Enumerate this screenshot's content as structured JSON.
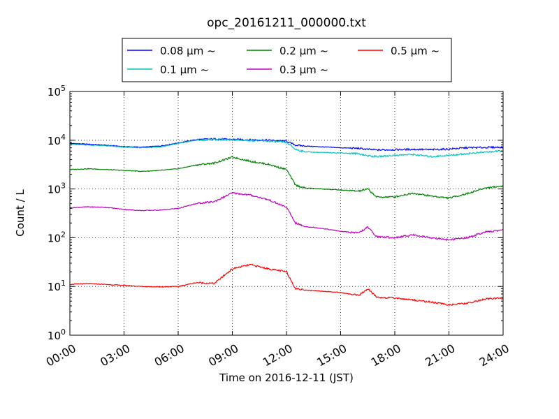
{
  "chart_data": {
    "type": "line",
    "title": "opc_20161211_000000.txt",
    "xlabel": "Time on 2016-12-11 (JST)",
    "ylabel": "Count / L",
    "yscale": "log",
    "ylim": [
      1,
      100000
    ],
    "xlim": [
      "00:00",
      "24:00"
    ],
    "grid": true,
    "legend_position": "top-center, outside plot",
    "x_ticks": [
      "00:00",
      "03:00",
      "06:00",
      "09:00",
      "12:00",
      "15:00",
      "18:00",
      "21:00",
      "24:00"
    ],
    "y_ticks": [
      {
        "base": "10",
        "exp": "0"
      },
      {
        "base": "10",
        "exp": "1"
      },
      {
        "base": "10",
        "exp": "2"
      },
      {
        "base": "10",
        "exp": "3"
      },
      {
        "base": "10",
        "exp": "4"
      },
      {
        "base": "10",
        "exp": "5"
      }
    ],
    "x_hours": [
      0,
      1,
      2,
      3,
      4,
      5,
      6,
      7,
      8,
      9,
      10,
      11,
      12,
      12.5,
      13,
      14,
      15,
      16,
      16.5,
      17,
      18,
      19,
      20,
      21,
      22,
      23,
      24
    ],
    "series": [
      {
        "name": "0.08 µm ~",
        "legend_label": "0.08 μm ~",
        "color": "#0000ff",
        "values": [
          8600,
          8300,
          7900,
          7400,
          7200,
          7600,
          8800,
          10300,
          10600,
          10400,
          10200,
          10000,
          9600,
          7900,
          7600,
          7300,
          7000,
          6800,
          6500,
          6300,
          6400,
          6500,
          6400,
          6600,
          7000,
          7100,
          7200
        ]
      },
      {
        "name": "0.1 µm ~",
        "legend_label": "0.1 μm ~",
        "color": "#00bfbf",
        "values": [
          8200,
          8000,
          7700,
          7200,
          7000,
          7300,
          8600,
          10000,
          10400,
          10100,
          9900,
          9600,
          9000,
          6500,
          5800,
          5600,
          5500,
          5300,
          4800,
          4600,
          4900,
          5100,
          4600,
          4900,
          5300,
          5700,
          6000
        ]
      },
      {
        "name": "0.2 µm ~",
        "legend_label": "0.2 μm ~",
        "color": "#008000",
        "values": [
          2500,
          2600,
          2500,
          2400,
          2300,
          2400,
          2600,
          3100,
          3400,
          4500,
          3700,
          3200,
          2500,
          1200,
          1050,
          1000,
          950,
          900,
          1000,
          680,
          690,
          820,
          720,
          650,
          800,
          1050,
          1150
        ]
      },
      {
        "name": "0.3 µm ~",
        "legend_label": "0.3 μm ~",
        "color": "#bf00bf",
        "values": [
          410,
          430,
          420,
          380,
          360,
          370,
          400,
          500,
          550,
          830,
          750,
          600,
          420,
          200,
          170,
          155,
          135,
          125,
          165,
          105,
          100,
          115,
          100,
          90,
          100,
          130,
          145
        ]
      },
      {
        "name": "0.5 µm ~",
        "legend_label": "0.5 μm ~",
        "color": "#ff0000",
        "values": [
          11,
          11.5,
          11,
          10.5,
          10,
          9.8,
          10,
          12,
          11.5,
          23,
          28,
          23,
          20,
          9,
          8.5,
          8,
          7.5,
          6.5,
          9,
          6,
          5.8,
          5.3,
          4.8,
          4.2,
          4.5,
          5.5,
          5.8
        ]
      }
    ]
  }
}
